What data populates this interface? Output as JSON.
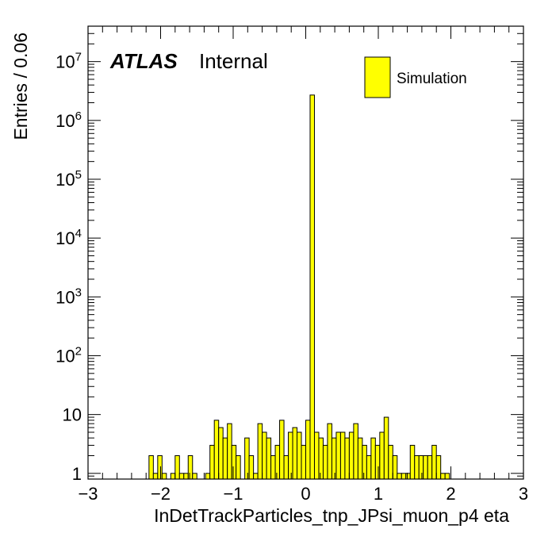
{
  "chart_data": {
    "type": "bar",
    "style": "histogram",
    "title": "",
    "xlabel": "InDetTrackParticles_tnp_JPsi_muon_p4 eta",
    "ylabel": "Entries / 0.06",
    "xlim": [
      -3,
      3
    ],
    "bin_width": 0.06,
    "yscale": "log",
    "ylim": [
      0.8,
      40000000
    ],
    "x_ticks": [
      -3,
      -2,
      -1,
      0,
      1,
      2,
      3
    ],
    "x_tick_labels": [
      "−3",
      "−2",
      "−1",
      "0",
      "1",
      "2",
      "3"
    ],
    "y_tick_labels": [
      {
        "value": 1,
        "base": "1",
        "exp": ""
      },
      {
        "value": 10,
        "base": "10",
        "exp": ""
      },
      {
        "value": 100,
        "base": "10",
        "exp": "2"
      },
      {
        "value": 1000,
        "base": "10",
        "exp": "3"
      },
      {
        "value": 10000,
        "base": "10",
        "exp": "4"
      },
      {
        "value": 100000,
        "base": "10",
        "exp": "5"
      },
      {
        "value": 1000000,
        "base": "10",
        "exp": "6"
      },
      {
        "value": 10000000,
        "base": "10",
        "exp": "7"
      }
    ],
    "bins": [
      {
        "x": -2.16,
        "y": 2
      },
      {
        "x": -2.1,
        "y": 1
      },
      {
        "x": -2.04,
        "y": 2
      },
      {
        "x": -1.98,
        "y": 1
      },
      {
        "x": -1.86,
        "y": 1
      },
      {
        "x": -1.8,
        "y": 2
      },
      {
        "x": -1.74,
        "y": 1
      },
      {
        "x": -1.68,
        "y": 1
      },
      {
        "x": -1.62,
        "y": 2
      },
      {
        "x": -1.56,
        "y": 1
      },
      {
        "x": -1.38,
        "y": 1
      },
      {
        "x": -1.32,
        "y": 3
      },
      {
        "x": -1.26,
        "y": 8
      },
      {
        "x": -1.2,
        "y": 6
      },
      {
        "x": -1.14,
        "y": 4
      },
      {
        "x": -1.08,
        "y": 7
      },
      {
        "x": -1.02,
        "y": 3
      },
      {
        "x": -0.96,
        "y": 2
      },
      {
        "x": -0.84,
        "y": 4
      },
      {
        "x": -0.78,
        "y": 2
      },
      {
        "x": -0.72,
        "y": 1
      },
      {
        "x": -0.66,
        "y": 7
      },
      {
        "x": -0.6,
        "y": 5
      },
      {
        "x": -0.54,
        "y": 4
      },
      {
        "x": -0.48,
        "y": 2
      },
      {
        "x": -0.42,
        "y": 3
      },
      {
        "x": -0.36,
        "y": 8
      },
      {
        "x": -0.3,
        "y": 2
      },
      {
        "x": -0.24,
        "y": 5
      },
      {
        "x": -0.18,
        "y": 6
      },
      {
        "x": -0.12,
        "y": 5
      },
      {
        "x": -0.06,
        "y": 3
      },
      {
        "x": 0.0,
        "y": 8
      },
      {
        "x": 0.06,
        "y": 2700000
      },
      {
        "x": 0.12,
        "y": 5
      },
      {
        "x": 0.18,
        "y": 4
      },
      {
        "x": 0.24,
        "y": 3
      },
      {
        "x": 0.3,
        "y": 7
      },
      {
        "x": 0.36,
        "y": 4
      },
      {
        "x": 0.42,
        "y": 5
      },
      {
        "x": 0.48,
        "y": 5
      },
      {
        "x": 0.54,
        "y": 4
      },
      {
        "x": 0.6,
        "y": 5
      },
      {
        "x": 0.66,
        "y": 7
      },
      {
        "x": 0.72,
        "y": 4
      },
      {
        "x": 0.78,
        "y": 3
      },
      {
        "x": 0.84,
        "y": 2
      },
      {
        "x": 0.9,
        "y": 4
      },
      {
        "x": 0.96,
        "y": 3
      },
      {
        "x": 1.02,
        "y": 5
      },
      {
        "x": 1.08,
        "y": 9
      },
      {
        "x": 1.14,
        "y": 3
      },
      {
        "x": 1.2,
        "y": 2
      },
      {
        "x": 1.26,
        "y": 1
      },
      {
        "x": 1.32,
        "y": 1
      },
      {
        "x": 1.38,
        "y": 1
      },
      {
        "x": 1.44,
        "y": 3
      },
      {
        "x": 1.5,
        "y": 2
      },
      {
        "x": 1.56,
        "y": 2
      },
      {
        "x": 1.62,
        "y": 2
      },
      {
        "x": 1.68,
        "y": 2
      },
      {
        "x": 1.74,
        "y": 3
      },
      {
        "x": 1.8,
        "y": 2
      },
      {
        "x": 1.86,
        "y": 1
      },
      {
        "x": 1.92,
        "y": 1
      }
    ],
    "legend": [
      {
        "name": "Simulation",
        "color": "#ffff00"
      }
    ],
    "legend_position": "top-right",
    "grid": false,
    "colors": {
      "fill": "#ffff00",
      "line": "#000000",
      "frame": "#000000"
    }
  },
  "annotation": {
    "experiment": "ATLAS",
    "status": "Internal"
  }
}
